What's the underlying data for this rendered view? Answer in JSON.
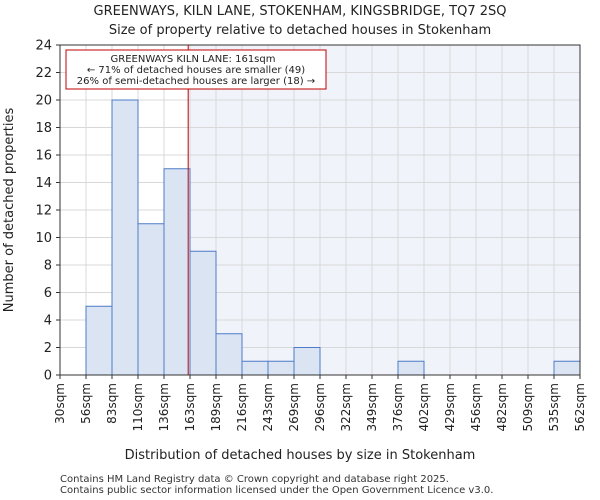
{
  "chart_data": {
    "type": "bar",
    "title": "GREENWAYS, KILN LANE, STOKENHAM, KINGSBRIDGE, TQ7 2SQ",
    "subtitle": "Size of property relative to detached houses in Stokenham",
    "xlabel": "Distribution of detached houses by size in Stokenham",
    "ylabel": "Number of detached properties",
    "ylim": [
      0,
      24
    ],
    "yticks": [
      0,
      2,
      4,
      6,
      8,
      10,
      12,
      14,
      16,
      18,
      20,
      22,
      24
    ],
    "bin_edges": [
      "30sqm",
      "56sqm",
      "83sqm",
      "110sqm",
      "136sqm",
      "163sqm",
      "189sqm",
      "216sqm",
      "243sqm",
      "269sqm",
      "296sqm",
      "322sqm",
      "349sqm",
      "376sqm",
      "402sqm",
      "429sqm",
      "456sqm",
      "482sqm",
      "509sqm",
      "535sqm",
      "562sqm"
    ],
    "values": [
      0,
      5,
      20,
      11,
      15,
      9,
      3,
      1,
      1,
      2,
      0,
      0,
      0,
      1,
      0,
      0,
      0,
      0,
      0,
      1
    ],
    "marker": {
      "value": 161,
      "unit": "sqm",
      "bin_index": 4,
      "bin_fraction": 0.93
    },
    "annotation": {
      "line1": "GREENWAYS KILN LANE: 161sqm",
      "line2": "← 71% of detached houses are smaller (49)",
      "line3": "26% of semi-detached houses are larger (18) →"
    },
    "colors": {
      "bar_fill": "#dae4f3",
      "bar_edge": "#4e7bc7",
      "marker": "#c00000",
      "grid": "#d8d8d8",
      "shade": "#f0f3fa"
    }
  },
  "footer": {
    "line1": "Contains HM Land Registry data © Crown copyright and database right 2025.",
    "line2": "Contains public sector information licensed under the Open Government Licence v3.0."
  }
}
